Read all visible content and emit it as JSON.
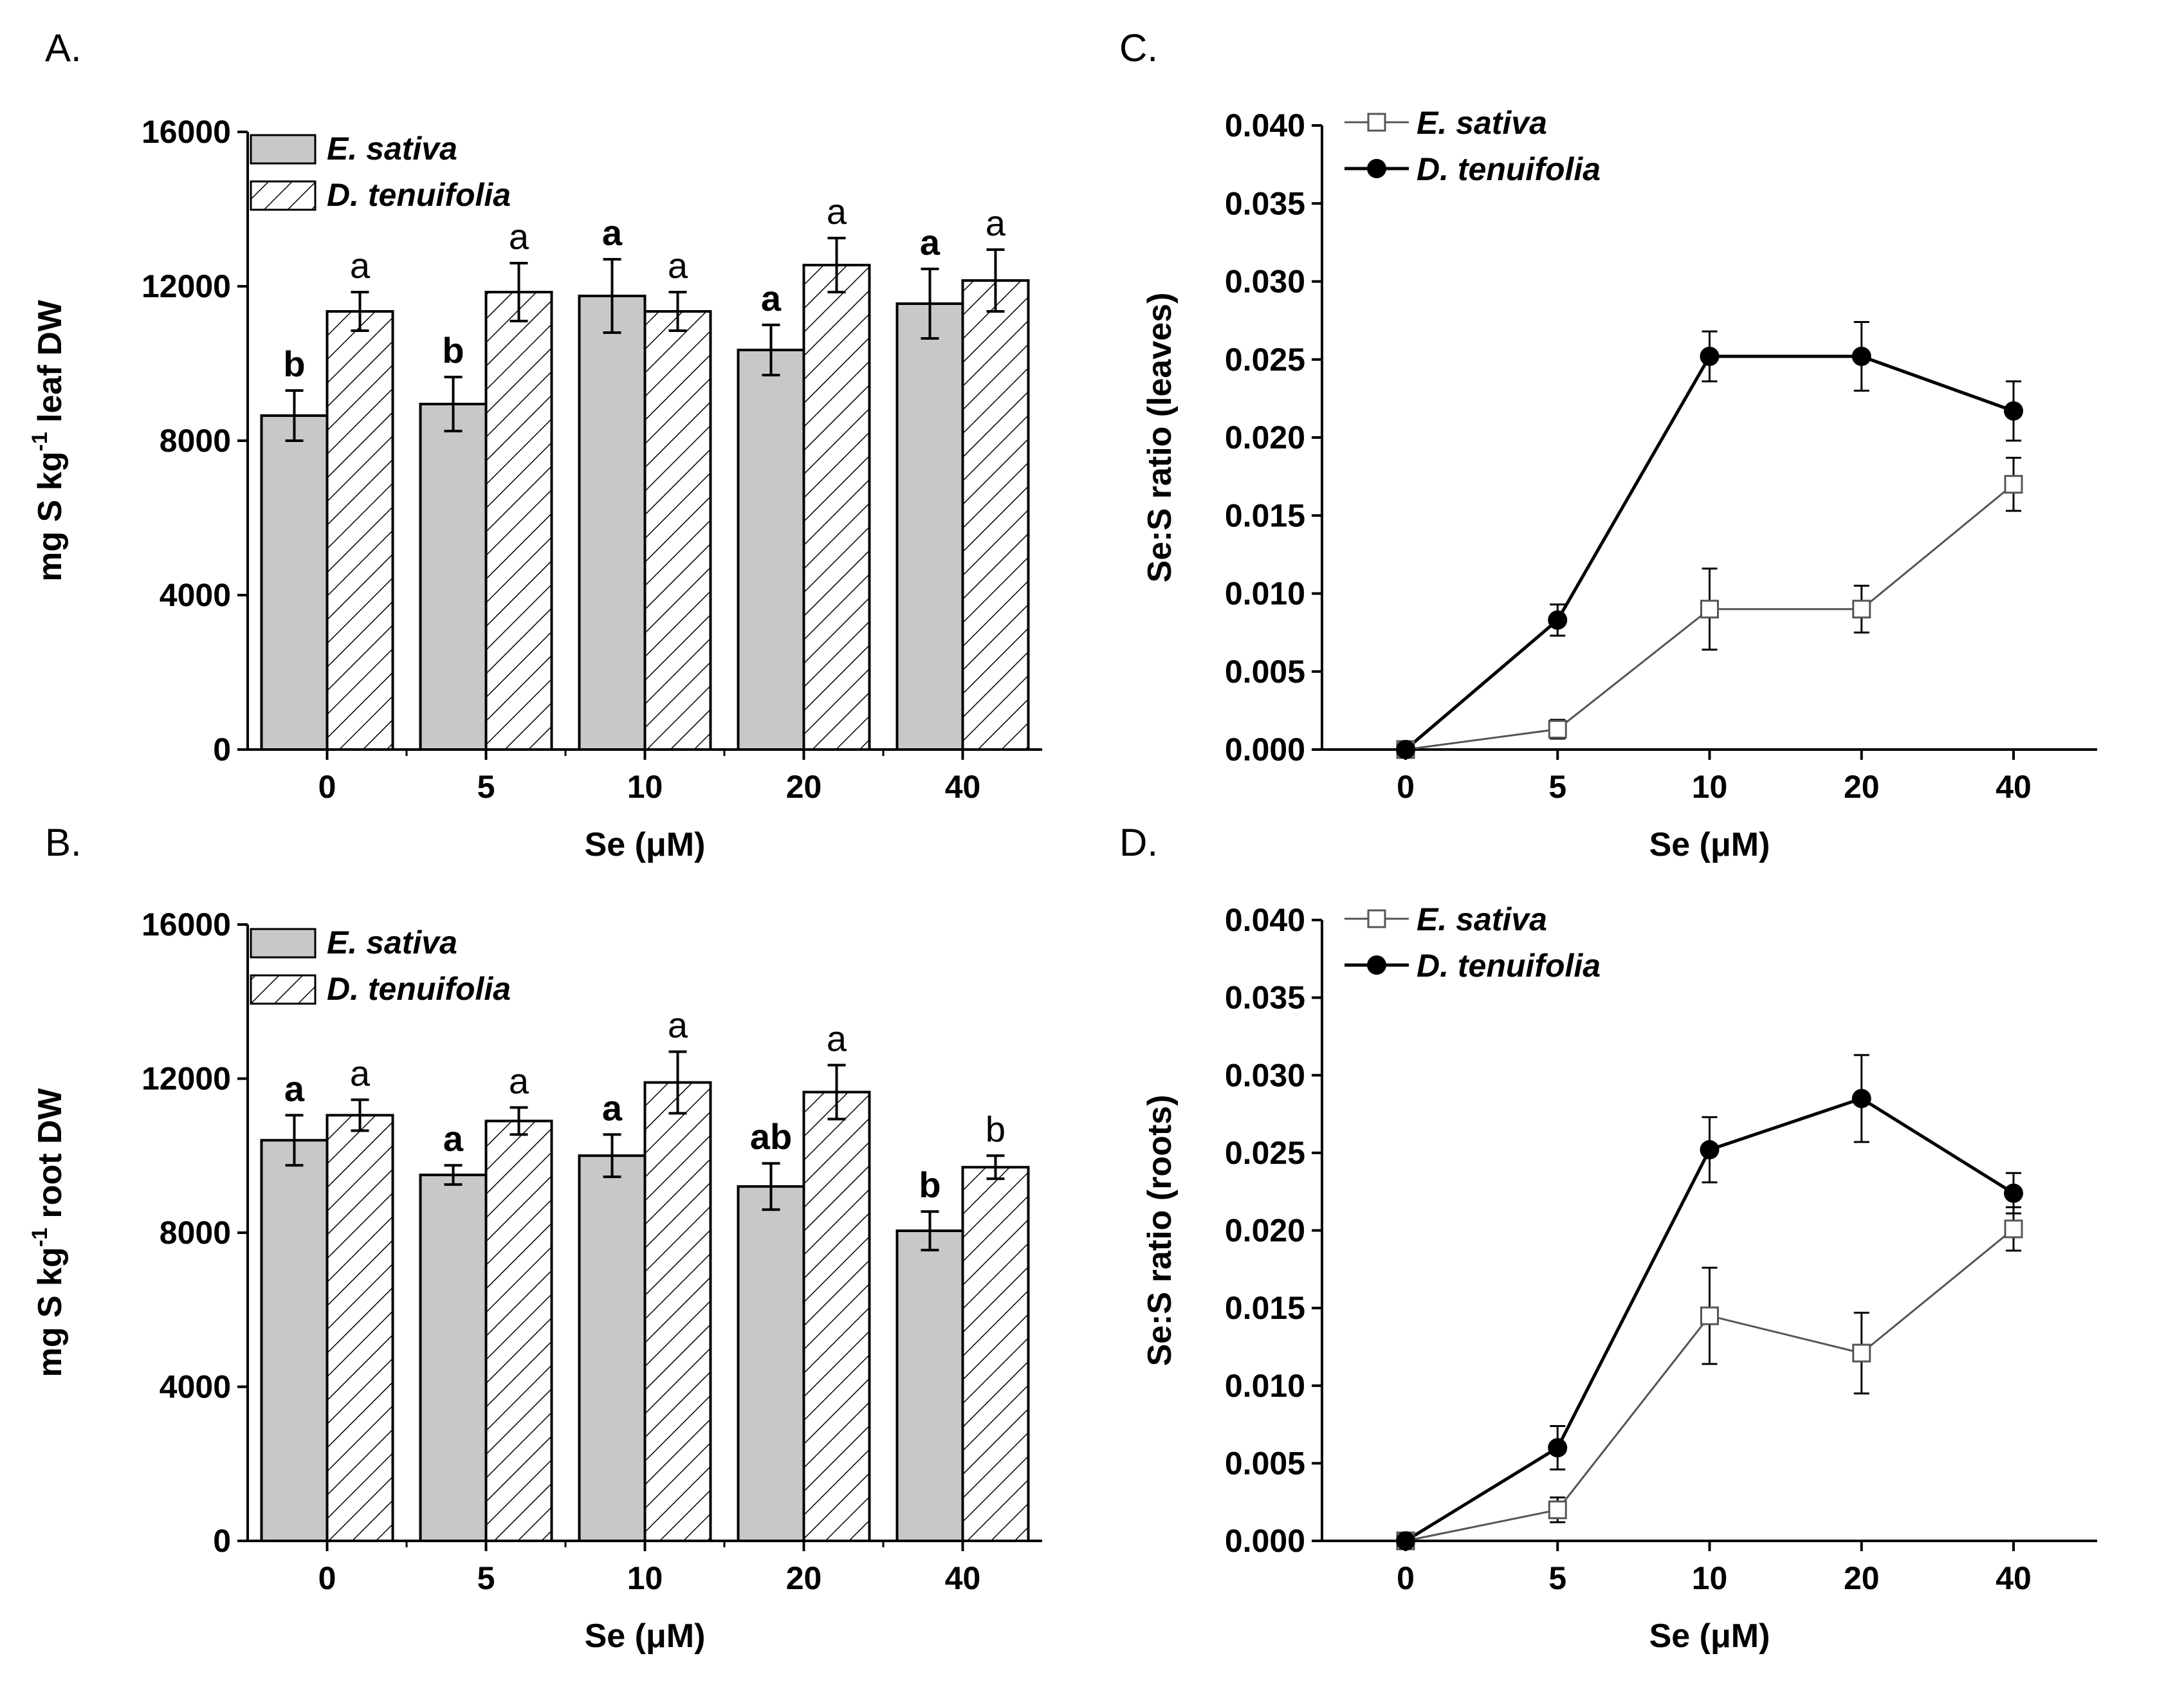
{
  "colors": {
    "bar_fill_sativa": "#c8c8c8",
    "bar_fill_tenuifolia": "#ffffff",
    "hatch": "#000000",
    "axis": "#000000",
    "line_sativa": "#555555",
    "line_tenuifolia": "#000000"
  },
  "chart_data": [
    {
      "panel": "A.",
      "type": "bar",
      "title": "",
      "xlabel": "Se (μM)",
      "ylabel_pre": "mg S kg",
      "ylabel_sup": "-1",
      "ylabel_post": " leaf DW",
      "ylim": [
        0,
        16000
      ],
      "yticks": [
        0,
        4000,
        8000,
        12000,
        16000
      ],
      "categories": [
        "0",
        "5",
        "10",
        "20",
        "40"
      ],
      "legend": [
        "E. sativa",
        "D. tenuifolia"
      ],
      "series": [
        {
          "name": "E. sativa",
          "values": [
            8650,
            8950,
            11750,
            10350,
            11550
          ],
          "errors": [
            650,
            700,
            950,
            650,
            900
          ],
          "letters": [
            "b",
            "b",
            "a",
            "a",
            "a"
          ]
        },
        {
          "name": "D. tenuifolia",
          "values": [
            11350,
            11850,
            11350,
            12550,
            12150
          ],
          "errors": [
            500,
            750,
            500,
            700,
            800
          ],
          "letters": [
            "a",
            "a",
            "a",
            "a",
            "a"
          ]
        }
      ]
    },
    {
      "panel": "B.",
      "type": "bar",
      "title": "",
      "xlabel": "Se (μM)",
      "ylabel_pre": "mg S kg",
      "ylabel_sup": "-1",
      "ylabel_post": " root DW",
      "ylim": [
        0,
        16000
      ],
      "yticks": [
        0,
        4000,
        8000,
        12000,
        16000
      ],
      "categories": [
        "0",
        "5",
        "10",
        "20",
        "40"
      ],
      "legend": [
        "E. sativa",
        "D. tenuifolia"
      ],
      "series": [
        {
          "name": "E. sativa",
          "values": [
            10400,
            9500,
            10000,
            9200,
            8050
          ],
          "errors": [
            650,
            250,
            550,
            600,
            500
          ],
          "letters": [
            "a",
            "a",
            "a",
            "ab",
            "b"
          ]
        },
        {
          "name": "D. tenuifolia",
          "values": [
            11050,
            10900,
            11900,
            11650,
            9700
          ],
          "errors": [
            400,
            350,
            800,
            700,
            300
          ],
          "letters": [
            "a",
            "a",
            "a",
            "a",
            "b"
          ]
        }
      ]
    },
    {
      "panel": "C.",
      "type": "line",
      "title": "",
      "xlabel": "Se (μM)",
      "ylabel": "Se:S ratio (leaves)",
      "ylim": [
        0,
        0.04
      ],
      "yticks": [
        "0.000",
        "0.005",
        "0.010",
        "0.015",
        "0.020",
        "0.025",
        "0.030",
        "0.035",
        "0.040"
      ],
      "categories": [
        "0",
        "5",
        "10",
        "20",
        "40"
      ],
      "legend": [
        "E. sativa",
        "D. tenuifolia"
      ],
      "series": [
        {
          "name": "E. sativa",
          "marker": "open-square",
          "values": [
            0.0,
            0.0013,
            0.009,
            0.009,
            0.017
          ],
          "errors": [
            0.0,
            0.0006,
            0.0026,
            0.0015,
            0.0017
          ]
        },
        {
          "name": "D. tenuifolia",
          "marker": "filled-circle",
          "values": [
            0.0,
            0.0083,
            0.0252,
            0.0252,
            0.0217
          ],
          "errors": [
            0.0,
            0.001,
            0.0016,
            0.0022,
            0.0019
          ]
        }
      ]
    },
    {
      "panel": "D.",
      "type": "line",
      "title": "",
      "xlabel": "Se (μM)",
      "ylabel": "Se:S ratio (roots)",
      "ylim": [
        0,
        0.04
      ],
      "yticks": [
        "0.000",
        "0.005",
        "0.010",
        "0.015",
        "0.020",
        "0.025",
        "0.030",
        "0.035",
        "0.040"
      ],
      "categories": [
        "0",
        "5",
        "10",
        "20",
        "40"
      ],
      "legend": [
        "E. sativa",
        "D. tenuifolia"
      ],
      "series": [
        {
          "name": "E. sativa",
          "marker": "open-square",
          "values": [
            0.0,
            0.002,
            0.0145,
            0.0121,
            0.0201
          ],
          "errors": [
            0.0,
            0.0008,
            0.0031,
            0.0026,
            0.0014
          ]
        },
        {
          "name": "D. tenuifolia",
          "marker": "filled-circle",
          "values": [
            0.0,
            0.006,
            0.0252,
            0.0285,
            0.0224
          ],
          "errors": [
            0.0,
            0.0014,
            0.0021,
            0.0028,
            0.0013
          ]
        }
      ]
    }
  ]
}
